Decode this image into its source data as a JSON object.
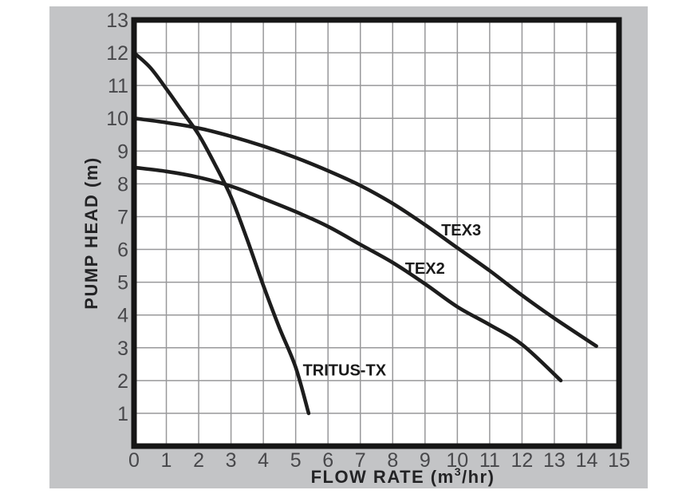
{
  "canvas": {
    "panel_bg": "#c3c4c6",
    "plot_bg": "#ffffff",
    "grid_color": "#98989a",
    "border_color": "#161616",
    "curve_color": "#1d1d1d",
    "tick_color": "#48484b",
    "title_color": "#232325",
    "curve_label_color": "#1a1a1a"
  },
  "chart_data": {
    "type": "line",
    "title": "",
    "xlabel": "FLOW RATE (m³/hr)",
    "xlabel_parts": {
      "pre": "FLOW RATE (m",
      "sup": "3",
      "post": "/hr)"
    },
    "ylabel": "PUMP HEAD (m)",
    "xlim": [
      0,
      15
    ],
    "ylim": [
      0,
      13
    ],
    "x_ticks": [
      0,
      1,
      2,
      3,
      4,
      5,
      6,
      7,
      8,
      9,
      10,
      11,
      12,
      13,
      14,
      15
    ],
    "y_ticks": [
      1,
      2,
      3,
      4,
      5,
      6,
      7,
      8,
      9,
      10,
      11,
      12,
      13
    ],
    "grid": true,
    "legend_position": "inline-curve-labels",
    "series": [
      {
        "name": "TRITUS-TX",
        "points": [
          [
            0,
            12
          ],
          [
            0.5,
            11.55
          ],
          [
            1,
            10.9
          ],
          [
            1.5,
            10.2
          ],
          [
            2,
            9.5
          ],
          [
            2.5,
            8.6
          ],
          [
            3,
            7.6
          ],
          [
            3.5,
            6.3
          ],
          [
            4,
            4.9
          ],
          [
            4.5,
            3.6
          ],
          [
            5,
            2.4
          ],
          [
            5.4,
            1
          ]
        ],
        "label": {
          "x": 5.22,
          "y": 2.32,
          "anchor": "start"
        }
      },
      {
        "name": "TEX2",
        "points": [
          [
            0,
            8.5
          ],
          [
            1,
            8.38
          ],
          [
            2,
            8.2
          ],
          [
            3,
            7.93
          ],
          [
            4,
            7.55
          ],
          [
            5,
            7.15
          ],
          [
            6,
            6.7
          ],
          [
            7,
            6.15
          ],
          [
            8,
            5.6
          ],
          [
            9,
            4.95
          ],
          [
            10,
            4.25
          ],
          [
            11,
            3.7
          ],
          [
            12,
            3.1
          ],
          [
            13.2,
            2
          ]
        ],
        "label": {
          "x": 8.38,
          "y": 5.43,
          "anchor": "start"
        }
      },
      {
        "name": "TEX3",
        "points": [
          [
            0,
            10
          ],
          [
            1,
            9.87
          ],
          [
            2,
            9.7
          ],
          [
            3,
            9.45
          ],
          [
            4,
            9.15
          ],
          [
            5,
            8.8
          ],
          [
            6,
            8.4
          ],
          [
            7,
            7.95
          ],
          [
            8,
            7.4
          ],
          [
            9,
            6.75
          ],
          [
            10,
            6.05
          ],
          [
            11,
            5.35
          ],
          [
            12,
            4.6
          ],
          [
            13,
            3.9
          ],
          [
            14.3,
            3.05
          ]
        ],
        "label": {
          "x": 9.5,
          "y": 6.6,
          "anchor": "start"
        }
      }
    ]
  }
}
